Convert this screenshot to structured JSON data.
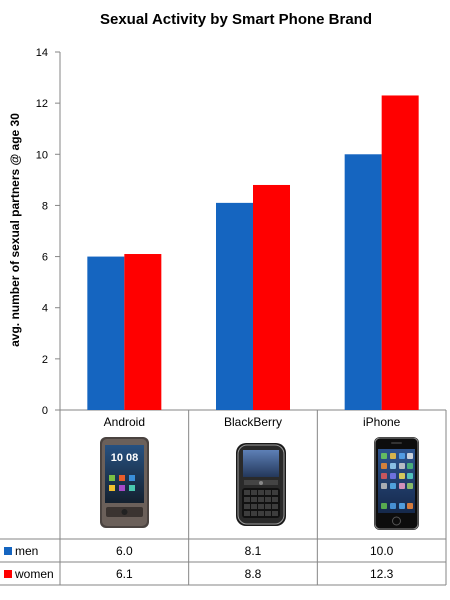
{
  "chart_data": {
    "type": "bar",
    "title": "Sexual Activity by Smart Phone Brand",
    "xlabel": "",
    "ylabel": "avg. number of sexual partners @ age 30",
    "ylim": [
      0,
      14
    ],
    "yticks": [
      0,
      2,
      4,
      6,
      8,
      10,
      12,
      14
    ],
    "grid": false,
    "legend": "bottom-left data table",
    "categories": [
      "Android",
      "BlackBerry",
      "iPhone"
    ],
    "series": [
      {
        "name": "men",
        "color": "#1565c0",
        "values": [
          6.0,
          8.1,
          10.0
        ],
        "labels": [
          "6.0",
          "8.1",
          "10.0"
        ]
      },
      {
        "name": "women",
        "color": "#ff0000",
        "values": [
          6.1,
          8.8,
          12.3
        ],
        "labels": [
          "6.1",
          "8.8",
          "12.3"
        ]
      }
    ]
  },
  "phones": [
    {
      "brand": "Android",
      "screen_text": "10 08",
      "icon": "htc-desire-phone-icon"
    },
    {
      "brand": "BlackBerry",
      "icon": "blackberry-bold-phone-icon"
    },
    {
      "brand": "iPhone",
      "icon": "iphone-4-phone-icon"
    }
  ]
}
